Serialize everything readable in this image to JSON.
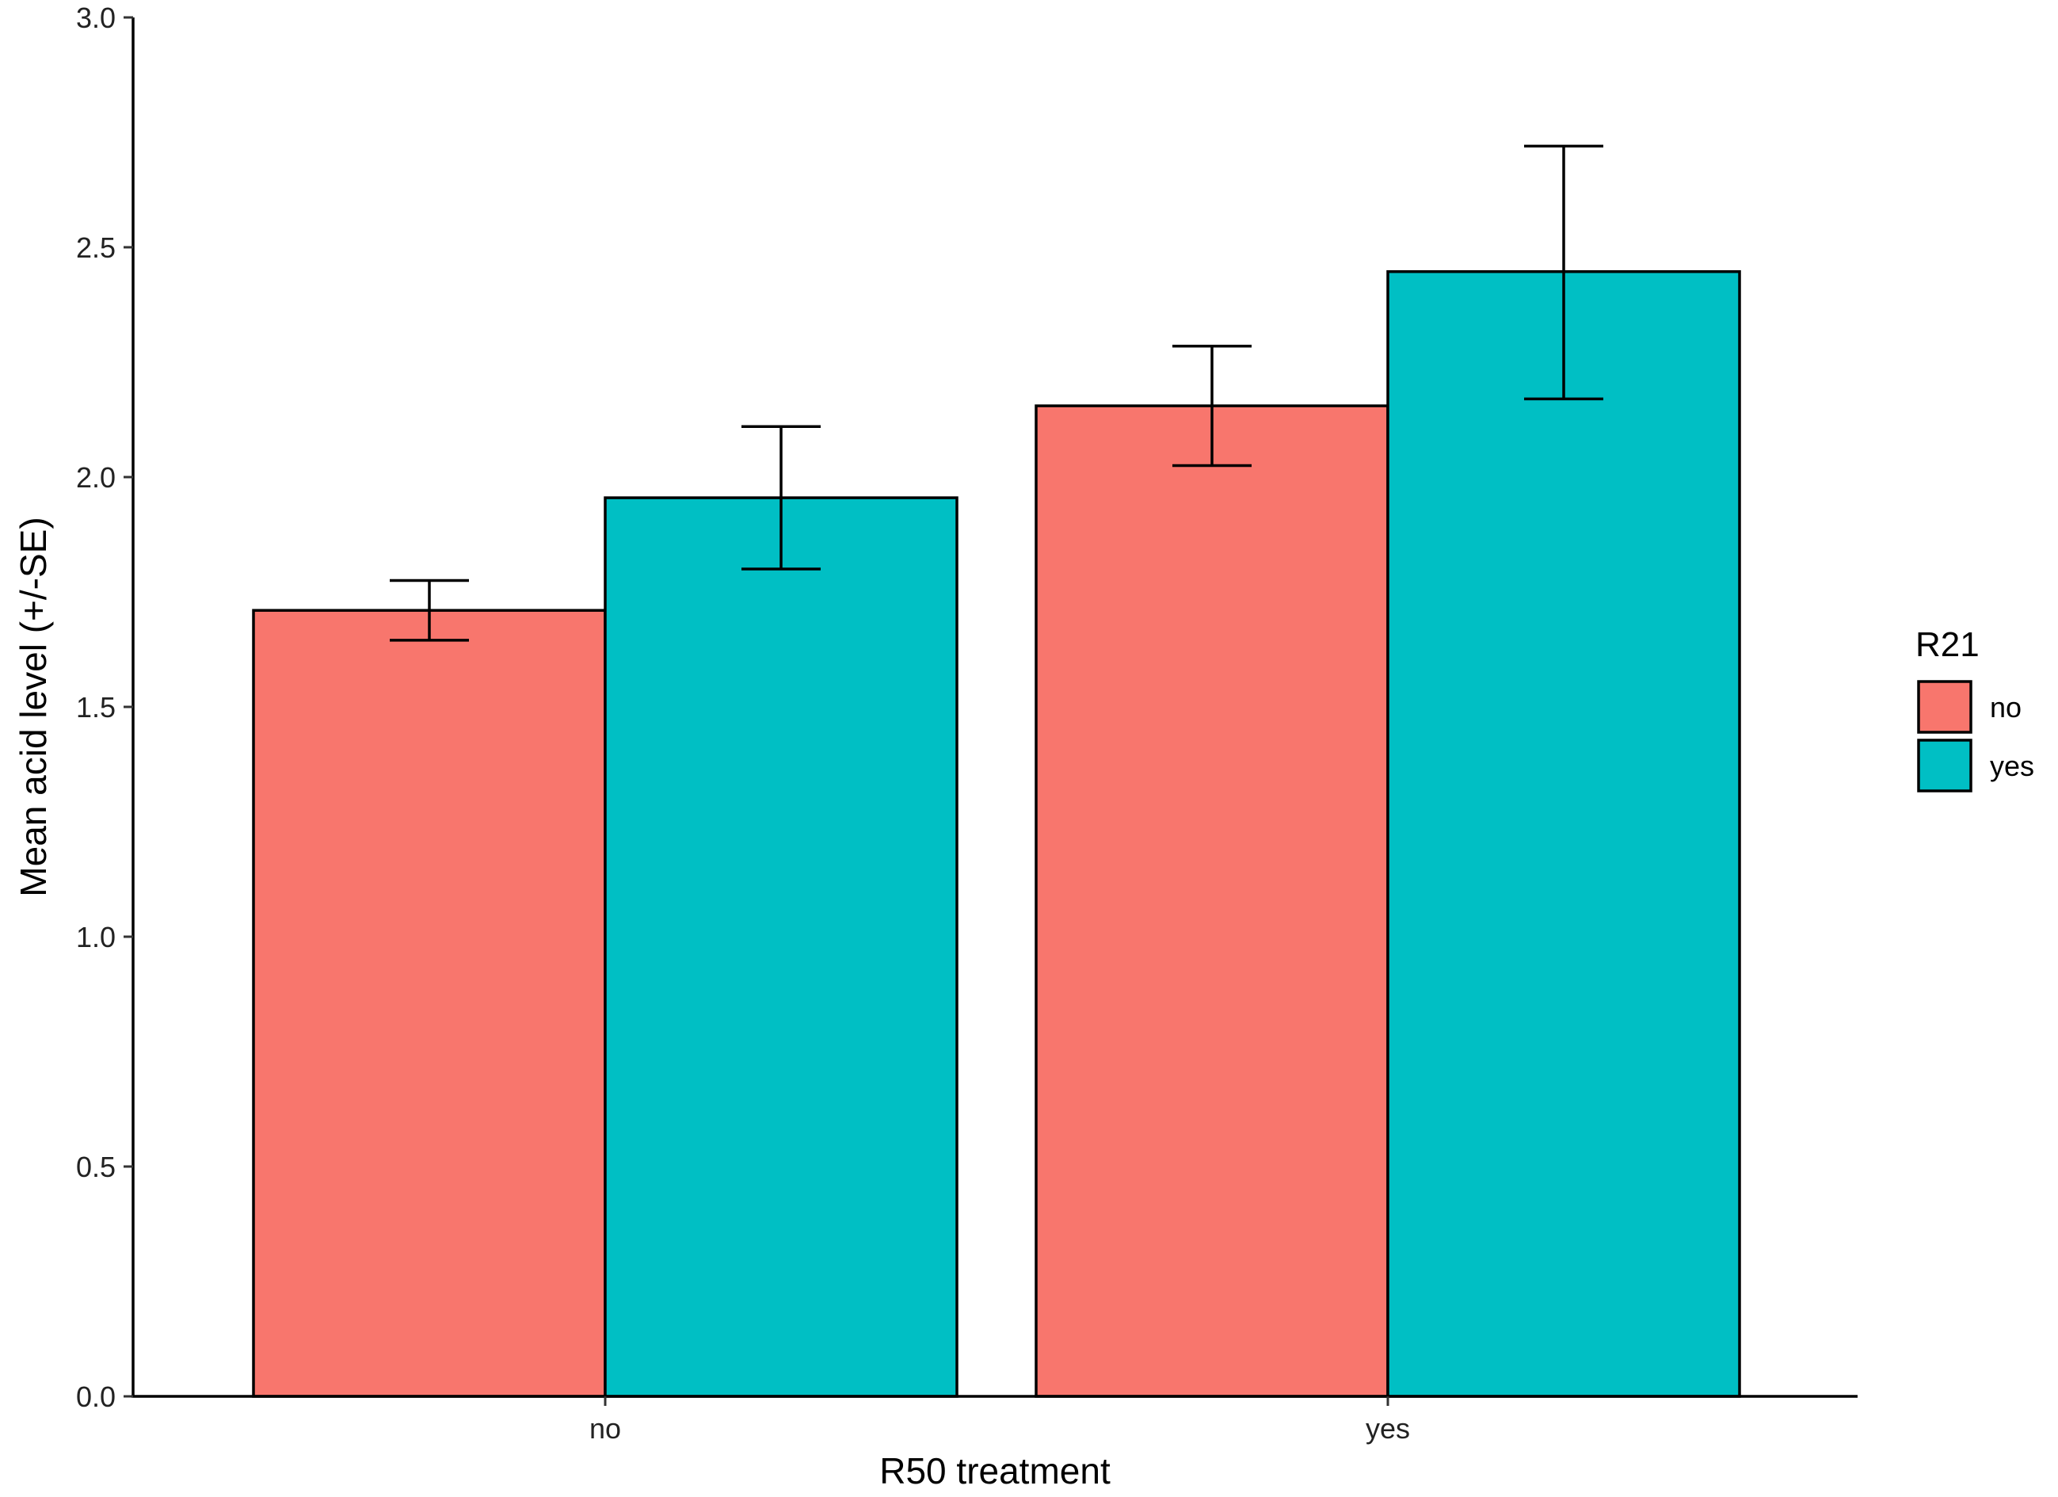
{
  "chart_data": {
    "type": "bar",
    "title": "",
    "xlabel": "R50 treatment",
    "ylabel": "Mean acid level (+/-SE)",
    "categories": [
      "no",
      "yes"
    ],
    "ylim": [
      0,
      3.0
    ],
    "yticks": [
      "0.0",
      "0.5",
      "1.0",
      "1.5",
      "2.0",
      "2.5",
      "3.0"
    ],
    "legend": {
      "title": "R21",
      "position": "right"
    },
    "grid": false,
    "series": [
      {
        "name": "no",
        "color": "#F8766D",
        "values": [
          1.71,
          2.155
        ],
        "err_low": [
          1.645,
          2.025
        ],
        "err_high": [
          1.775,
          2.285
        ]
      },
      {
        "name": "yes",
        "color": "#00BFC4",
        "values": [
          1.955,
          2.447
        ],
        "err_low": [
          1.8,
          2.17
        ],
        "err_high": [
          2.11,
          2.72
        ]
      }
    ]
  }
}
